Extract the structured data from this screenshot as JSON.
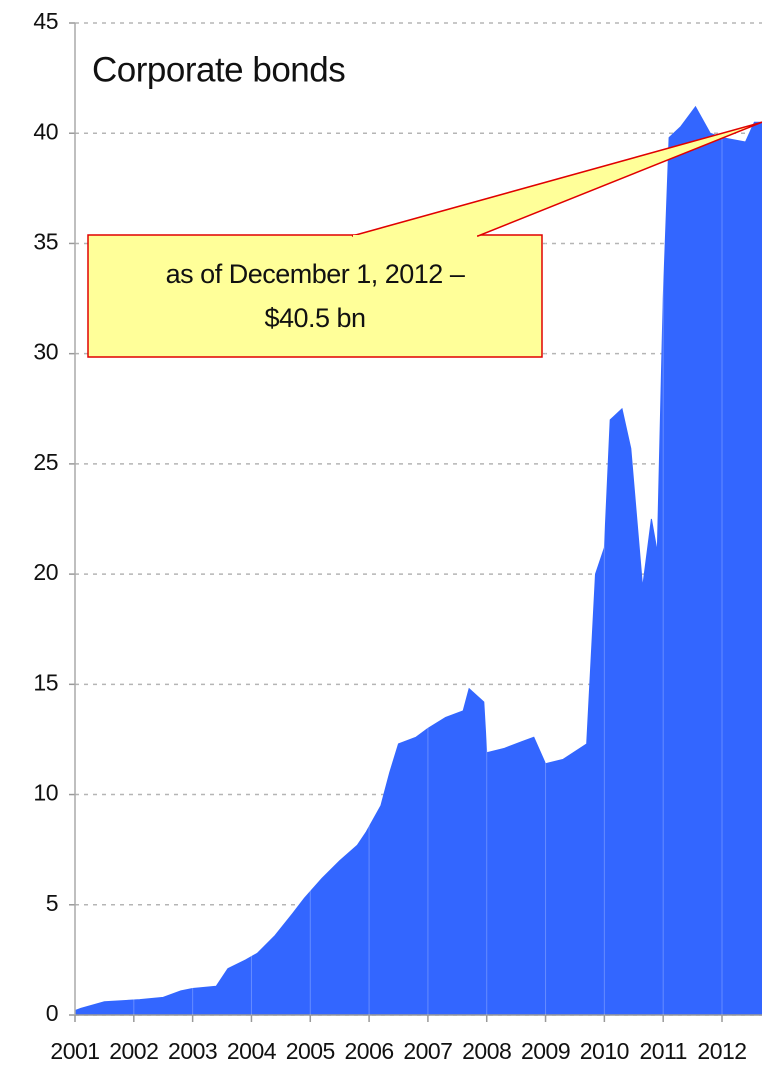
{
  "chart_data": {
    "type": "area",
    "title": "Corporate bonds",
    "annotation": [
      "as of December 1, 2012 –",
      "$40.5 bn"
    ],
    "x": [
      2001.0,
      2001.1,
      2001.5,
      2002.1,
      2002.5,
      2002.8,
      2003.0,
      2003.4,
      2003.6,
      2003.9,
      2004.1,
      2004.4,
      2004.7,
      2004.9,
      2005.2,
      2005.5,
      2005.8,
      2005.95,
      2006.2,
      2006.35,
      2006.5,
      2006.8,
      2007.0,
      2007.3,
      2007.6,
      2007.7,
      2007.95,
      2008.0,
      2008.3,
      2008.6,
      2008.8,
      2009.0,
      2009.3,
      2009.7,
      2009.85,
      2010.0,
      2010.1,
      2010.3,
      2010.45,
      2010.65,
      2010.8,
      2010.9,
      2011.0,
      2011.1,
      2011.3,
      2011.55,
      2011.8,
      2012.0,
      2012.4,
      2012.55,
      2012.68
    ],
    "values": [
      0.2,
      0.3,
      0.6,
      0.7,
      0.8,
      1.1,
      1.2,
      1.3,
      2.1,
      2.5,
      2.8,
      3.6,
      4.6,
      5.3,
      6.2,
      7.0,
      7.7,
      8.3,
      9.5,
      11.0,
      12.3,
      12.6,
      13.0,
      13.5,
      13.8,
      14.8,
      14.2,
      11.9,
      12.1,
      12.4,
      12.6,
      11.4,
      11.6,
      12.3,
      20.0,
      21.2,
      27.0,
      27.5,
      25.7,
      19.4,
      22.5,
      21.0,
      32.5,
      39.8,
      40.3,
      41.2,
      40.0,
      39.8,
      39.6,
      40.5,
      40.5
    ],
    "color": "#3366ff",
    "xlim": [
      2001,
      2012.68
    ],
    "xticks": [
      2001,
      2002,
      2003,
      2004,
      2005,
      2006,
      2007,
      2008,
      2009,
      2010,
      2011,
      2012
    ],
    "ylim": [
      0,
      45
    ],
    "yticks": [
      0,
      5,
      10,
      15,
      20,
      25,
      30,
      35,
      40,
      45
    ],
    "grid": true
  }
}
